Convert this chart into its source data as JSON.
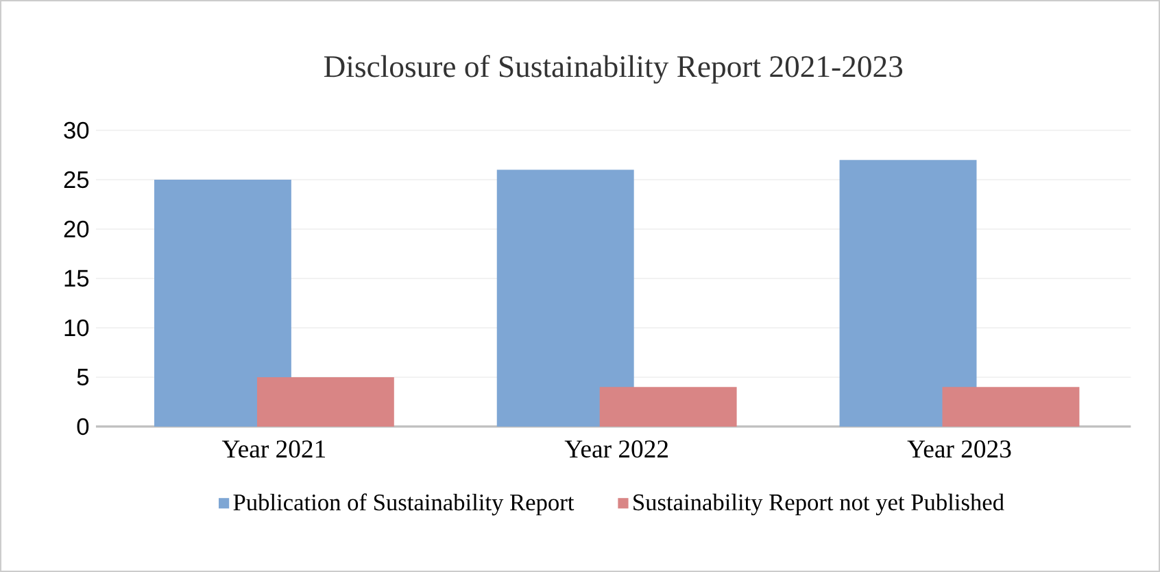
{
  "chart_data": {
    "type": "bar",
    "title": "Disclosure of Sustainability Report 2021-2023",
    "categories": [
      "Year 2021",
      "Year 2022",
      "Year 2023"
    ],
    "series": [
      {
        "name": "Publication of Sustainability Report",
        "color": "#7ea6d4",
        "values": [
          25,
          26,
          27
        ]
      },
      {
        "name": "Sustainability Report not yet Published",
        "color": "#d98585",
        "values": [
          5,
          4,
          4
        ]
      }
    ],
    "ylim": [
      0,
      30
    ],
    "yticks": [
      0,
      5,
      10,
      15,
      20,
      25,
      30
    ],
    "grid": "y",
    "legend": "bottom"
  }
}
